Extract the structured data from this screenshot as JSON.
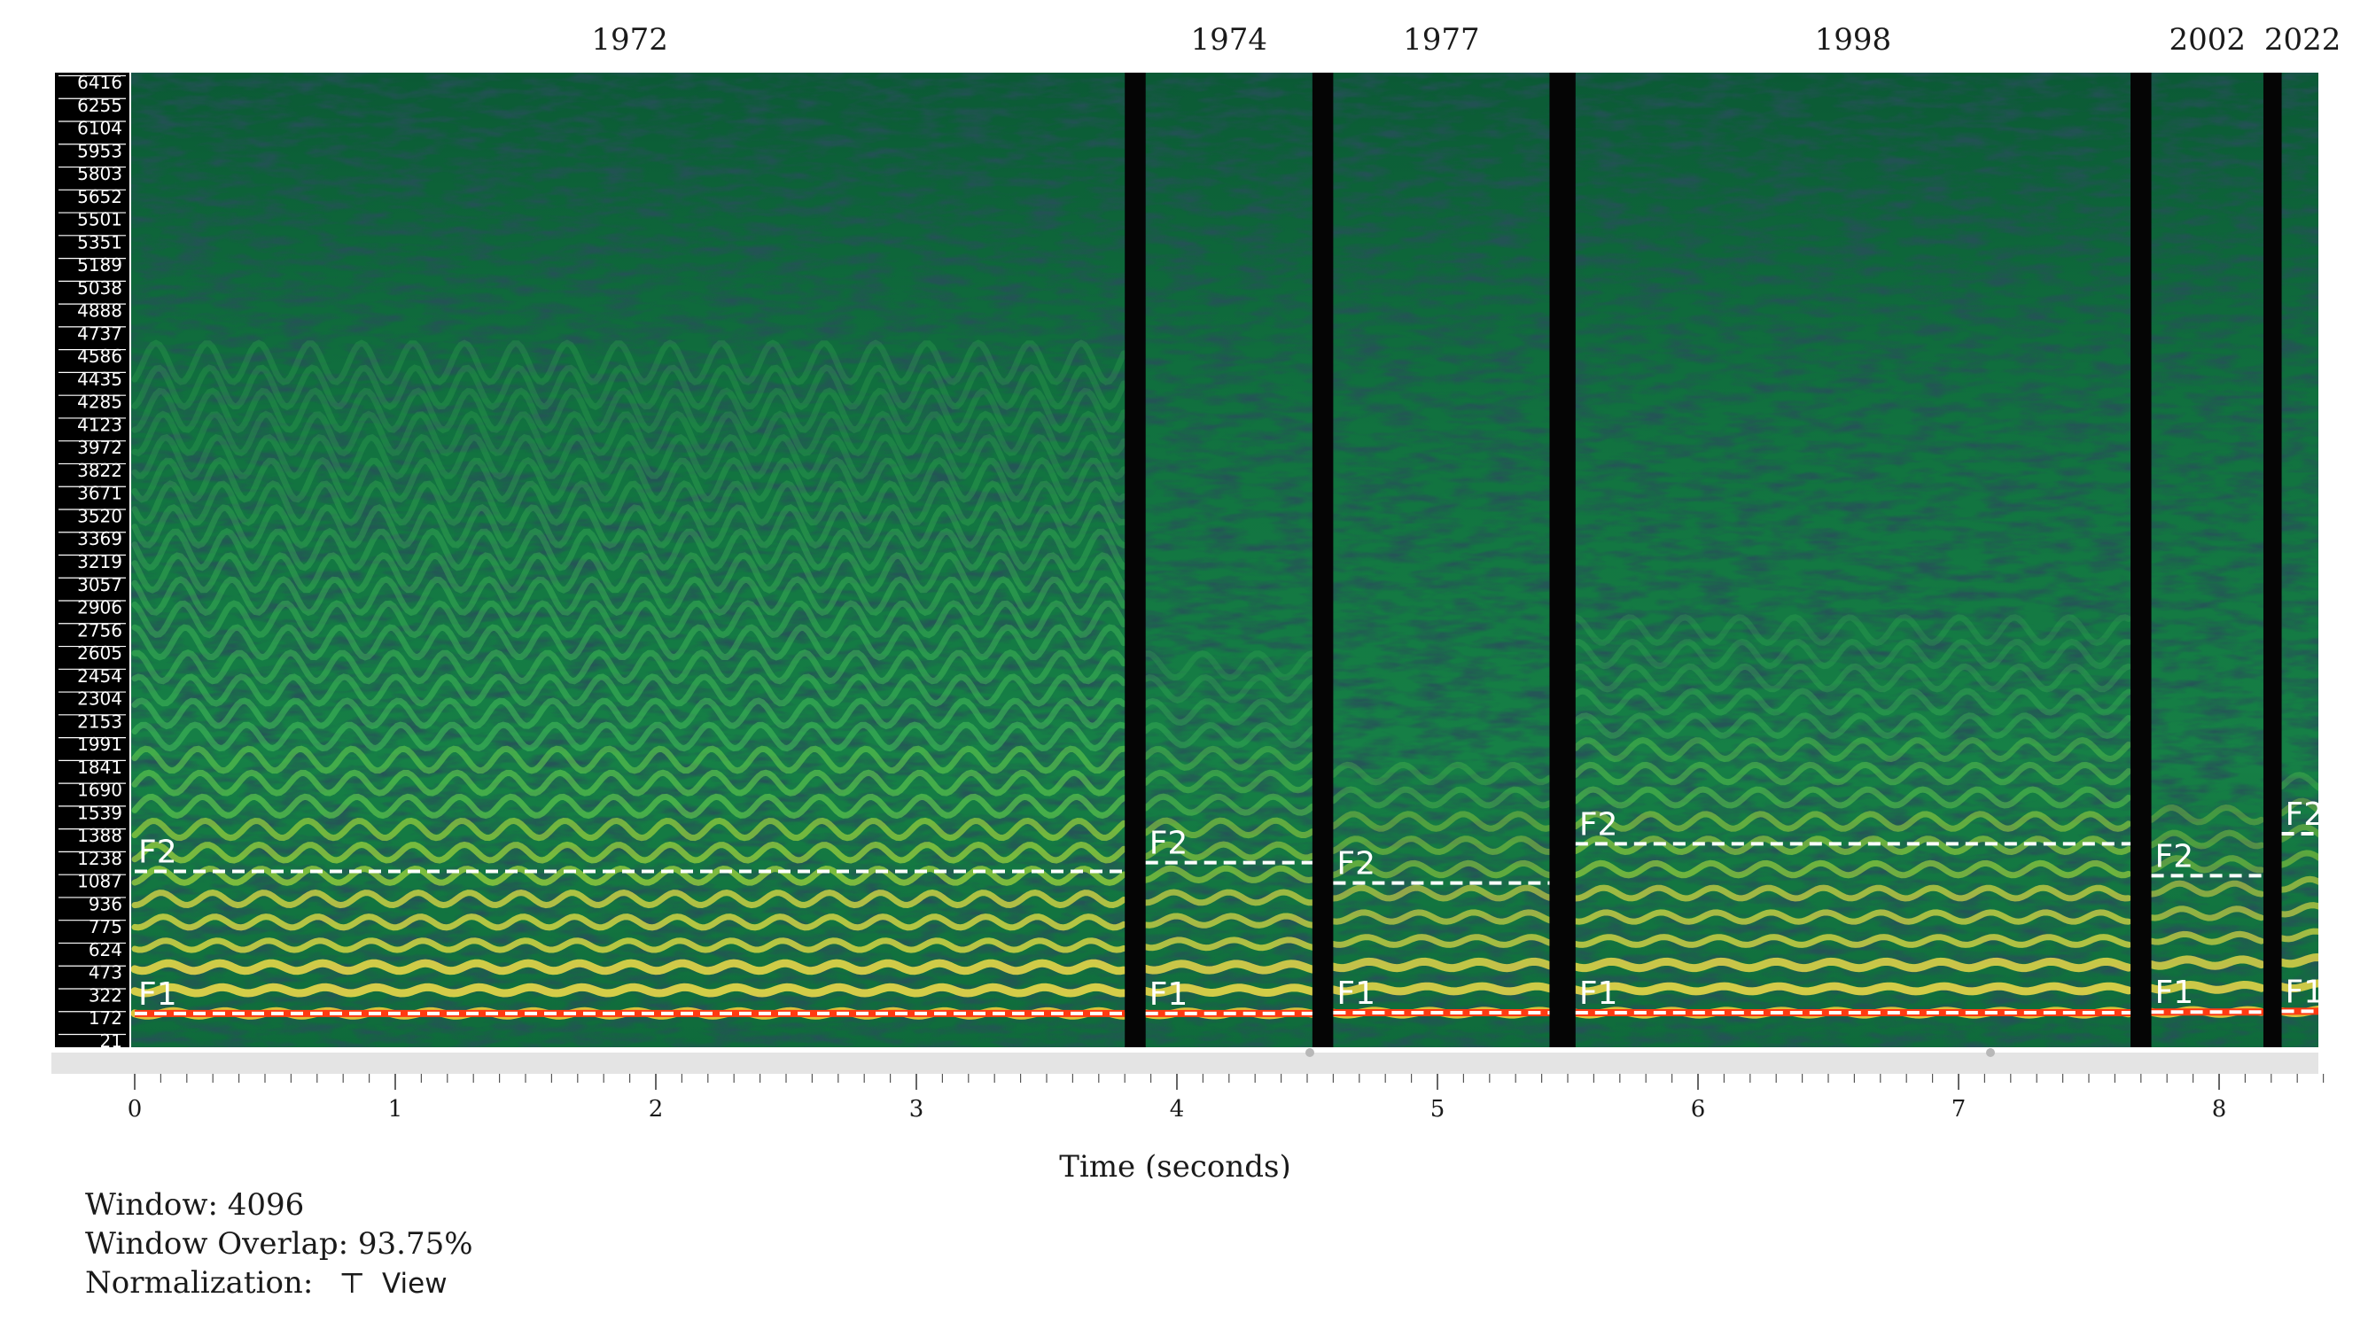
{
  "chart_data": {
    "type": "heatmap",
    "title": "",
    "xlabel": "Time (seconds)",
    "ylabel": "",
    "x_ticks": [
      "0",
      "1",
      "2",
      "3",
      "4",
      "5",
      "6",
      "7",
      "8"
    ],
    "xlim": [
      0,
      8.4
    ],
    "y_ticks": [
      "6416",
      "6255",
      "6104",
      "5953",
      "5803",
      "5652",
      "5501",
      "5351",
      "5189",
      "5038",
      "4888",
      "4737",
      "4586",
      "4435",
      "4285",
      "4123",
      "3972",
      "3822",
      "3671",
      "3520",
      "3369",
      "3219",
      "3057",
      "2906",
      "2756",
      "2605",
      "2454",
      "2304",
      "2153",
      "1991",
      "1841",
      "1690",
      "1539",
      "1388",
      "1238",
      "1087",
      "936",
      "775",
      "624",
      "473",
      "322",
      "172",
      "21"
    ],
    "ylim": [
      0,
      6500
    ],
    "colormap": [
      "#06121c",
      "#0b3b3a",
      "#17703e",
      "#27a84d",
      "#3fcf5a",
      "#cfd63c",
      "#e8a020",
      "#ff2a10"
    ],
    "segments": [
      {
        "label": "1972",
        "t_start": 0.0,
        "t_end": 3.8,
        "f1": 160,
        "f2": 1140,
        "harmonics": [
          160,
          320,
          480,
          630,
          790,
          950,
          1110,
          1270,
          1430,
          1590,
          1750,
          1910,
          2070,
          2230,
          2390,
          2550,
          2720,
          2880,
          3040,
          3200,
          3360,
          3520,
          3680,
          3840,
          4000,
          4160,
          4320,
          4480,
          4650
        ]
      },
      {
        "label": "1974",
        "t_start": 3.88,
        "t_end": 4.52,
        "f1": 160,
        "f2": 1200,
        "harmonics": [
          160,
          320,
          480,
          640,
          800,
          960,
          1120,
          1280,
          1440,
          1600,
          1760,
          1920,
          2080,
          2240,
          2400,
          2560
        ]
      },
      {
        "label": "1977",
        "t_start": 4.6,
        "t_end": 5.43,
        "f1": 165,
        "f2": 1060,
        "harmonics": [
          165,
          330,
          495,
          660,
          825,
          990,
          1155,
          1320,
          1485,
          1650,
          1815
        ]
      },
      {
        "label": "1998",
        "t_start": 5.53,
        "t_end": 7.66,
        "f1": 165,
        "f2": 1330,
        "harmonics": [
          165,
          330,
          495,
          660,
          825,
          990,
          1155,
          1320,
          1485,
          1650,
          1815,
          1980,
          2145,
          2310,
          2475,
          2640,
          2805
        ]
      },
      {
        "label": "2002",
        "t_start": 7.74,
        "t_end": 8.17,
        "f1": 170,
        "f2": 1110,
        "harmonics": [
          170,
          340,
          510,
          680,
          850,
          1020,
          1190,
          1360,
          1530
        ]
      },
      {
        "label": "2022",
        "t_start": 8.24,
        "t_end": 8.4,
        "f1": 175,
        "f2": 1400,
        "harmonics": [
          175,
          350,
          525,
          700,
          875,
          1050,
          1225,
          1400,
          1575,
          1750
        ]
      }
    ],
    "formant_labels": [
      "F1",
      "F2"
    ],
    "grid": false
  },
  "footer": {
    "window": "Window: 4096",
    "overlap": "Window Overlap: 93.75%",
    "normalization": "Normalization:",
    "norm_icon": "⊤",
    "view_label": "View"
  },
  "icons": {
    "normalization_icon": "pin-icon"
  }
}
